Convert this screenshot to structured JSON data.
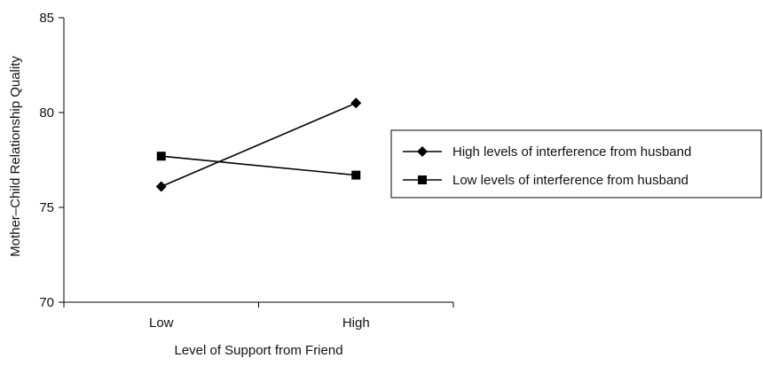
{
  "chart_data": {
    "type": "line",
    "title": "",
    "xlabel": "Level of Support from Friend",
    "ylabel": "Mother–Child Relationship Quality",
    "categories": [
      "Low",
      "High"
    ],
    "ylim": [
      70,
      85
    ],
    "yticks": [
      70,
      75,
      80,
      85
    ],
    "grid": false,
    "legend_position": "right",
    "series": [
      {
        "name": "High levels of interference from husband",
        "marker": "diamond",
        "color": "#000000",
        "values": [
          76.1,
          80.5
        ]
      },
      {
        "name": "Low levels of interference from husband",
        "marker": "square",
        "color": "#000000",
        "values": [
          77.7,
          76.7
        ]
      }
    ]
  }
}
